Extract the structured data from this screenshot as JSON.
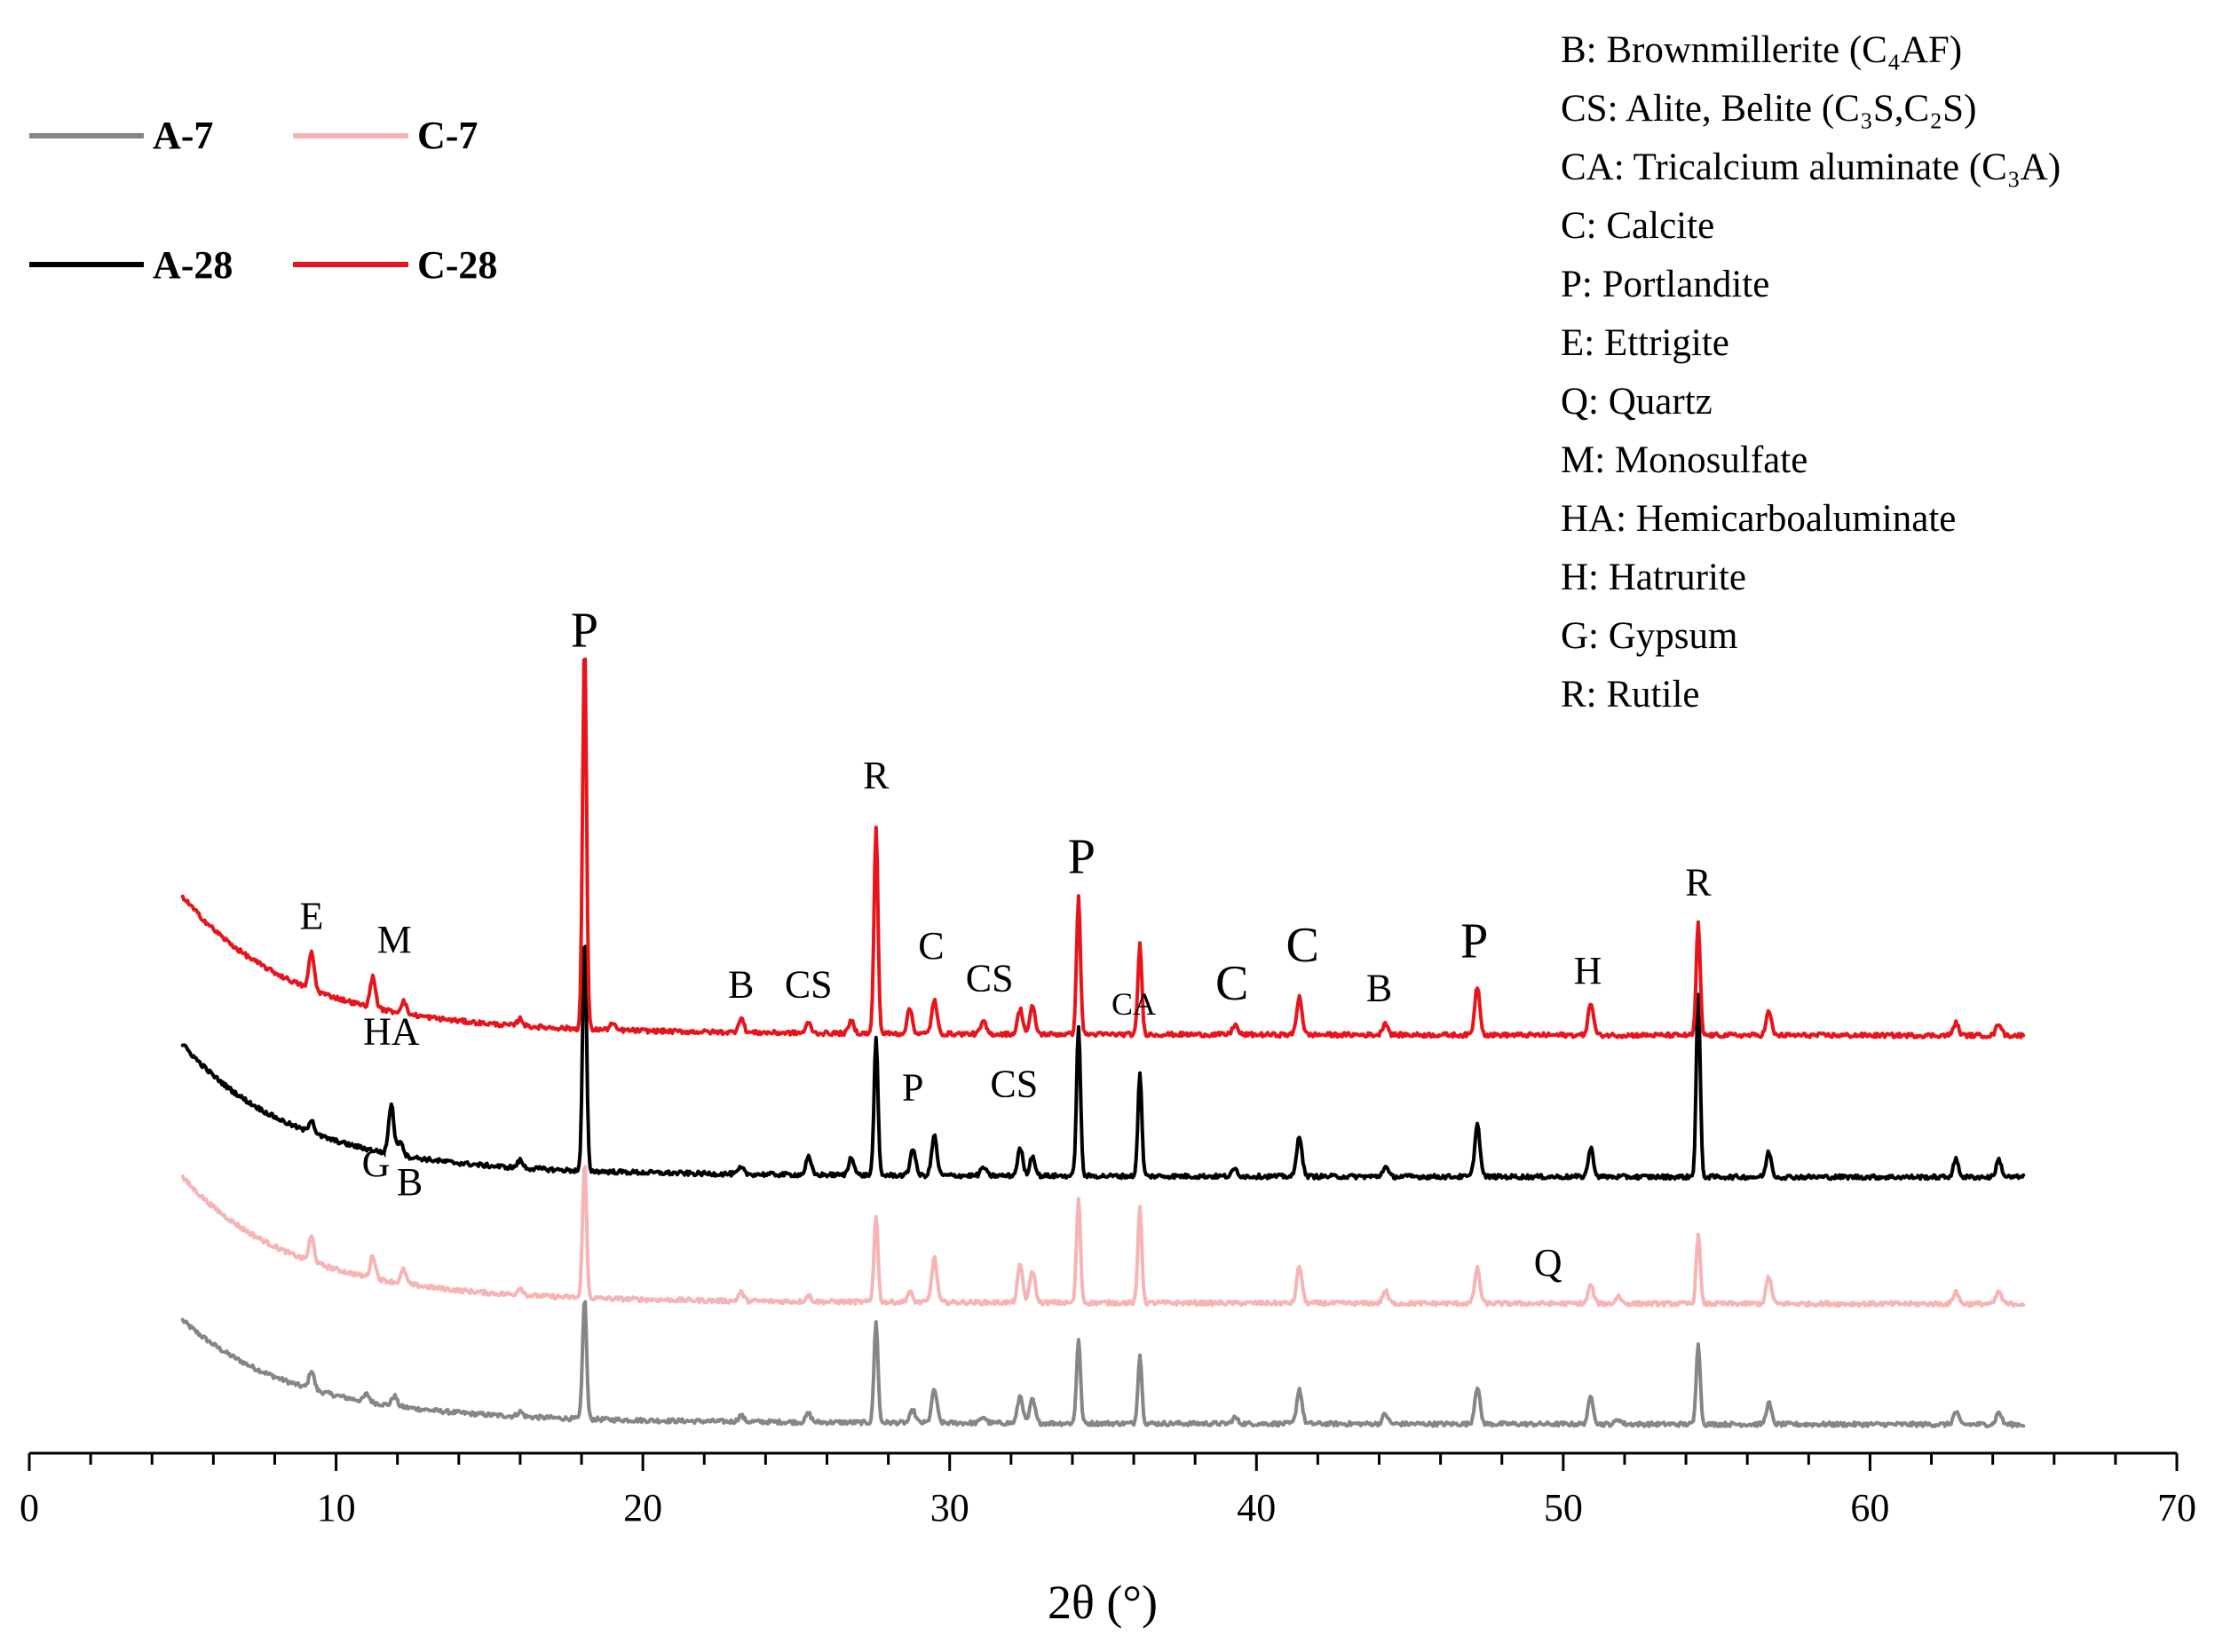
{
  "chart_data": {
    "type": "line",
    "title": "",
    "xlabel": "2θ (°)",
    "ylabel": "",
    "xlim": [
      0,
      70
    ],
    "xticks": [
      0,
      10,
      20,
      30,
      40,
      50,
      60,
      70
    ],
    "y_axis_shown": false,
    "grid": false,
    "legend_position": "top-left",
    "series": [
      {
        "name": "A-7",
        "color": "#868686",
        "offset": 0,
        "start": 0.84,
        "peaks": [
          [
            9.2,
            0.15
          ],
          [
            11.0,
            0.06
          ],
          [
            11.9,
            0.08
          ],
          [
            16.0,
            0.04
          ],
          [
            18.1,
            0.98
          ],
          [
            23.2,
            0.05
          ],
          [
            25.4,
            0.07
          ],
          [
            27.6,
            0.82
          ],
          [
            28.8,
            0.1
          ],
          [
            29.5,
            0.27
          ],
          [
            31.1,
            0.05
          ],
          [
            32.3,
            0.22
          ],
          [
            32.7,
            0.19
          ],
          [
            34.2,
            0.68
          ],
          [
            36.2,
            0.55
          ],
          [
            39.3,
            0.05
          ],
          [
            41.4,
            0.28
          ],
          [
            44.2,
            0.08
          ],
          [
            47.2,
            0.3
          ],
          [
            50.9,
            0.22
          ],
          [
            51.8,
            0.04
          ],
          [
            54.4,
            0.66
          ],
          [
            56.7,
            0.17
          ],
          [
            62.8,
            0.1
          ],
          [
            64.2,
            0.1
          ]
        ]
      },
      {
        "name": "C-7",
        "color": "#f7b4b5",
        "offset": 0.97,
        "start": 1.02,
        "peaks": [
          [
            9.2,
            0.2
          ],
          [
            11.2,
            0.18
          ],
          [
            12.2,
            0.11
          ],
          [
            16.0,
            0.06
          ],
          [
            18.1,
            1.1
          ],
          [
            23.2,
            0.07
          ],
          [
            25.4,
            0.05
          ],
          [
            27.6,
            0.7
          ],
          [
            28.7,
            0.08
          ],
          [
            29.5,
            0.36
          ],
          [
            32.3,
            0.3
          ],
          [
            32.7,
            0.26
          ],
          [
            34.2,
            0.84
          ],
          [
            36.2,
            0.78
          ],
          [
            41.4,
            0.3
          ],
          [
            44.2,
            0.1
          ],
          [
            47.2,
            0.28
          ],
          [
            50.9,
            0.15
          ],
          [
            51.8,
            0.06
          ],
          [
            54.4,
            0.57
          ],
          [
            56.7,
            0.22
          ],
          [
            62.8,
            0.1
          ],
          [
            64.2,
            0.1
          ]
        ]
      },
      {
        "name": "A-28",
        "color": "#000000",
        "offset": 1.99,
        "start": 1.07,
        "peaks": [
          [
            9.2,
            0.11
          ],
          [
            11.8,
            0.4
          ],
          [
            12.1,
            0.12
          ],
          [
            16.0,
            0.06
          ],
          [
            18.1,
            1.88
          ],
          [
            23.2,
            0.05
          ],
          [
            25.4,
            0.14
          ],
          [
            26.8,
            0.15
          ],
          [
            27.6,
            1.09
          ],
          [
            28.8,
            0.22
          ],
          [
            29.5,
            0.32
          ],
          [
            31.1,
            0.07
          ],
          [
            32.3,
            0.22
          ],
          [
            32.7,
            0.16
          ],
          [
            34.2,
            1.21
          ],
          [
            36.2,
            0.82
          ],
          [
            39.3,
            0.06
          ],
          [
            41.4,
            0.33
          ],
          [
            44.2,
            0.08
          ],
          [
            47.2,
            0.42
          ],
          [
            50.9,
            0.23
          ],
          [
            54.4,
            1.46
          ],
          [
            56.7,
            0.2
          ],
          [
            62.8,
            0.14
          ],
          [
            64.2,
            0.14
          ]
        ]
      },
      {
        "name": "C-28",
        "color": "#e8141b",
        "offset": 3.13,
        "start": 1.12,
        "peaks": [
          [
            9.2,
            0.3
          ],
          [
            11.2,
            0.25
          ],
          [
            12.2,
            0.1
          ],
          [
            16.0,
            0.06
          ],
          [
            18.1,
            3.11
          ],
          [
            19.0,
            0.05
          ],
          [
            23.2,
            0.12
          ],
          [
            25.4,
            0.08
          ],
          [
            26.8,
            0.1
          ],
          [
            27.6,
            1.66
          ],
          [
            28.7,
            0.2
          ],
          [
            29.5,
            0.27
          ],
          [
            31.1,
            0.1
          ],
          [
            32.3,
            0.2
          ],
          [
            32.7,
            0.22
          ],
          [
            34.2,
            1.1
          ],
          [
            36.2,
            0.73
          ],
          [
            39.3,
            0.08
          ],
          [
            41.4,
            0.31
          ],
          [
            44.2,
            0.1
          ],
          [
            47.2,
            0.39
          ],
          [
            50.9,
            0.26
          ],
          [
            54.4,
            0.9
          ],
          [
            56.7,
            0.19
          ],
          [
            62.8,
            0.1
          ],
          [
            64.2,
            0.1
          ]
        ]
      }
    ],
    "peak_labels": [
      {
        "text": "E",
        "x": 9.2,
        "y": 3.99,
        "size": "medium"
      },
      {
        "text": "M",
        "x": 11.9,
        "y": 3.8,
        "size": "medium"
      },
      {
        "text": "P",
        "x": 18.1,
        "y": 6.26,
        "size": "large"
      },
      {
        "text": "B",
        "x": 23.2,
        "y": 3.44,
        "size": "medium"
      },
      {
        "text": "CS",
        "x": 25.4,
        "y": 3.44,
        "size": "medium"
      },
      {
        "text": "R",
        "x": 27.6,
        "y": 5.12,
        "size": "medium"
      },
      {
        "text": "C",
        "x": 29.4,
        "y": 3.75,
        "size": "medium"
      },
      {
        "text": "CS",
        "x": 31.3,
        "y": 3.49,
        "size": "medium"
      },
      {
        "text": "P",
        "x": 34.3,
        "y": 4.44,
        "size": "large"
      },
      {
        "text": "CA",
        "x": 36.0,
        "y": 3.3,
        "size": "small"
      },
      {
        "text": "C",
        "x": 39.2,
        "y": 3.42,
        "size": "large"
      },
      {
        "text": "C",
        "x": 41.5,
        "y": 3.73,
        "size": "large"
      },
      {
        "text": "B",
        "x": 44.0,
        "y": 3.41,
        "size": "medium"
      },
      {
        "text": "P",
        "x": 47.1,
        "y": 3.76,
        "size": "large"
      },
      {
        "text": "H",
        "x": 50.8,
        "y": 3.55,
        "size": "medium"
      },
      {
        "text": "R",
        "x": 54.4,
        "y": 4.26,
        "size": "medium"
      },
      {
        "text": "HA",
        "x": 11.8,
        "y": 3.06,
        "size": "medium"
      },
      {
        "text": "P",
        "x": 28.8,
        "y": 2.61,
        "size": "medium"
      },
      {
        "text": "CS",
        "x": 32.1,
        "y": 2.64,
        "size": "medium"
      },
      {
        "text": "G",
        "x": 11.3,
        "y": 2.0,
        "size": "medium"
      },
      {
        "text": "B",
        "x": 12.4,
        "y": 1.85,
        "size": "medium"
      },
      {
        "text": "Q",
        "x": 49.5,
        "y": 1.2,
        "size": "medium"
      }
    ]
  },
  "legend": {
    "items": [
      {
        "label": "A-7",
        "color": "#868686"
      },
      {
        "label": "C-7",
        "color": "#f7b4b5"
      },
      {
        "label": "A-28",
        "color": "#000000"
      },
      {
        "label": "C-28",
        "color": "#e8141b"
      }
    ]
  },
  "phase_key": {
    "entries": [
      "B: Brownmillerite (C₄AF)",
      "CS: Alite, Belite (C₃S,C₂S)",
      "CA: Tricalcium aluminate (C₃A)",
      "C: Calcite",
      "P: Portlandite",
      "E: Ettrigite",
      "Q: Quartz",
      "M: Monosulfate",
      "HA: Hemicarboaluminate",
      "H: Hatrurite",
      "G: Gypsum",
      "R: Rutile"
    ]
  }
}
